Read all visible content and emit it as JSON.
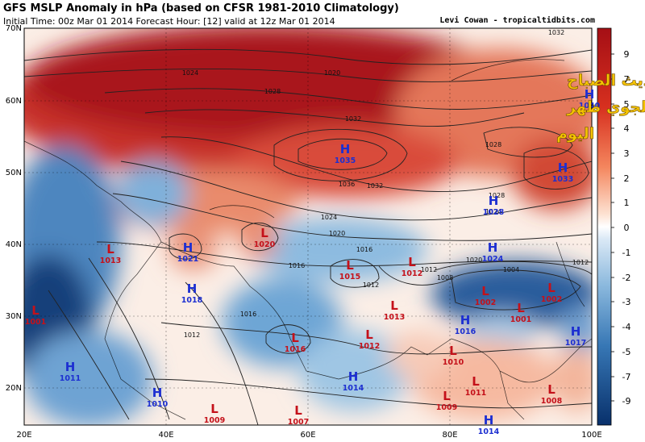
{
  "header": {
    "title": "GFS MSLP Anomaly in hPa (based on CFSR 1981-2010 Climatology)",
    "subtitle": "Initial Time: 00z Mar 01 2014 Forecast Hour: [12] valid at 12z Mar 01 2014",
    "credit": "Levi Cowan - tropicaltidbits.com"
  },
  "overlay_text": [
    "=تحديث الصباح",
    "لضغوطات الجوي ظهر",
    "اليوم"
  ],
  "colors": {
    "positive_max": "#a50f15",
    "positive_mid": "#ef6b4a",
    "neutral": "#ffffff",
    "negative_mid": "#6fa8d6",
    "negative_max": "#08306b",
    "high_label": "#1d2fd1",
    "low_label": "#c4111a",
    "overlay_text": "#f5c400"
  },
  "colorbar": {
    "ticks": [
      "9",
      "7",
      "5",
      "4",
      "3",
      "2",
      "1",
      "0",
      "-1",
      "-2",
      "-3",
      "-4",
      "-5",
      "-7",
      "-9"
    ]
  },
  "axes": {
    "lat_labels": [
      "70N",
      "60N",
      "50N",
      "40N",
      "30N",
      "20N"
    ],
    "lon_labels": [
      "20E",
      "40E",
      "60E",
      "80E",
      "100E"
    ]
  },
  "isobar_labels": [
    "1024",
    "1020",
    "1028",
    "1032",
    "1036",
    "1028",
    "1032",
    "1024",
    "1020",
    "1016",
    "1012",
    "1016",
    "1012",
    "1008",
    "1004",
    "1012",
    "1020",
    "1024",
    "1028",
    "1032",
    "1016",
    "1012"
  ],
  "pressure_systems": [
    {
      "type": "H",
      "value": "1040"
    },
    {
      "type": "H",
      "value": "1035"
    },
    {
      "type": "H",
      "value": "1033"
    },
    {
      "type": "H",
      "value": "1028"
    },
    {
      "type": "L",
      "value": "1020"
    },
    {
      "type": "H",
      "value": "1021"
    },
    {
      "type": "L",
      "value": "1013"
    },
    {
      "type": "H",
      "value": "1024"
    },
    {
      "type": "L",
      "value": "1012"
    },
    {
      "type": "L",
      "value": "1015"
    },
    {
      "type": "H",
      "value": "1018"
    },
    {
      "type": "L",
      "value": "1002"
    },
    {
      "type": "L",
      "value": "1002"
    },
    {
      "type": "L",
      "value": "1001"
    },
    {
      "type": "L",
      "value": "1001"
    },
    {
      "type": "L",
      "value": "1013"
    },
    {
      "type": "H",
      "value": "1016"
    },
    {
      "type": "H",
      "value": "1017"
    },
    {
      "type": "L",
      "value": "1016"
    },
    {
      "type": "L",
      "value": "1012"
    },
    {
      "type": "L",
      "value": "1010"
    },
    {
      "type": "H",
      "value": "1011"
    },
    {
      "type": "H",
      "value": "1014"
    },
    {
      "type": "L",
      "value": "1011"
    },
    {
      "type": "L",
      "value": "1009"
    },
    {
      "type": "H",
      "value": "1010"
    },
    {
      "type": "L",
      "value": "1009"
    },
    {
      "type": "L",
      "value": "1008"
    },
    {
      "type": "L",
      "value": "1007"
    },
    {
      "type": "H",
      "value": "1014"
    },
    {
      "type": "L",
      "value": "1011"
    }
  ]
}
